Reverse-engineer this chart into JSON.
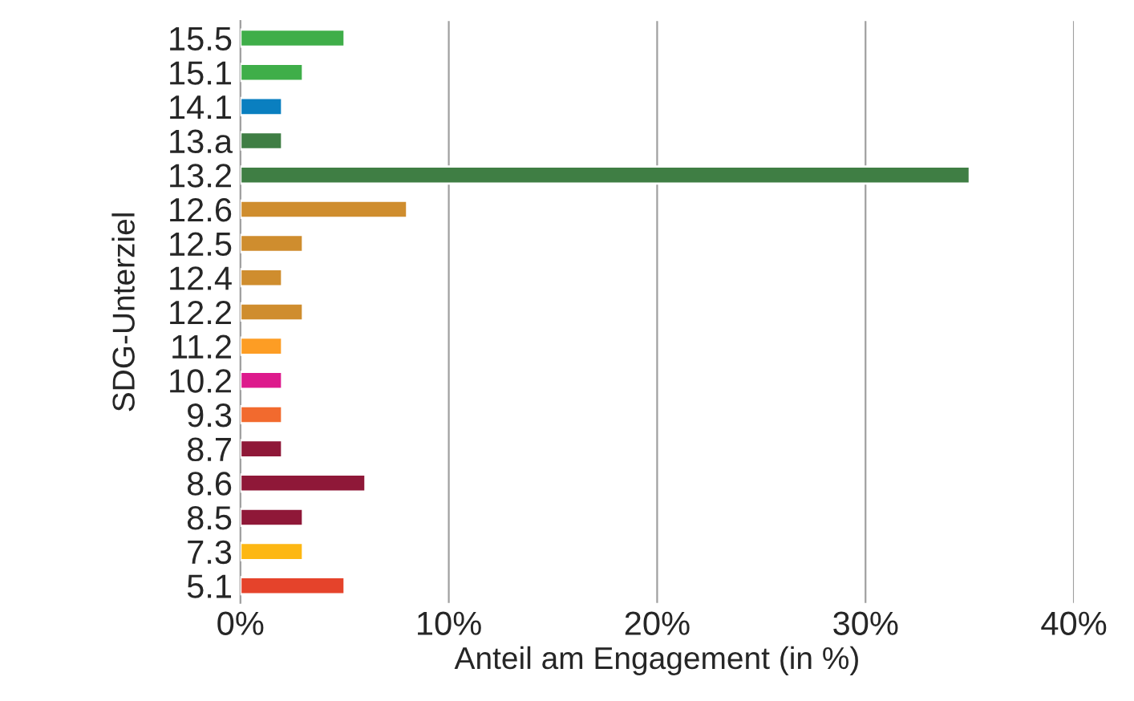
{
  "chart_data": {
    "type": "bar",
    "orientation": "horizontal",
    "xlabel": "Anteil am Engagement (in %)",
    "ylabel": "SDG-Unterziel",
    "categories": [
      "15.5",
      "15.1",
      "14.1",
      "13.a",
      "13.2",
      "12.6",
      "12.5",
      "12.4",
      "12.2",
      "11.2",
      "10.2",
      "9.3",
      "8.7",
      "8.6",
      "8.5",
      "7.3",
      "5.1"
    ],
    "values": [
      5,
      3,
      2,
      2,
      35,
      8,
      3,
      2,
      3,
      2,
      2,
      2,
      2,
      6,
      3,
      3,
      5
    ],
    "colors": [
      "#3fae49",
      "#3fae49",
      "#0a7fc0",
      "#3f7e44",
      "#3f7e44",
      "#cf8d2e",
      "#cf8d2e",
      "#cf8d2e",
      "#cf8d2e",
      "#fd9d24",
      "#dd1a8c",
      "#f26a2e",
      "#8f1838",
      "#8f1838",
      "#8f1838",
      "#fdb713",
      "#e5432b"
    ],
    "xlim": [
      0,
      40
    ],
    "xticks": [
      {
        "value": 0,
        "label": "0%"
      },
      {
        "value": 10,
        "label": "10%"
      },
      {
        "value": 20,
        "label": "20%"
      },
      {
        "value": 30,
        "label": "30%"
      },
      {
        "value": 40,
        "label": "40%"
      }
    ],
    "grid": "x"
  }
}
